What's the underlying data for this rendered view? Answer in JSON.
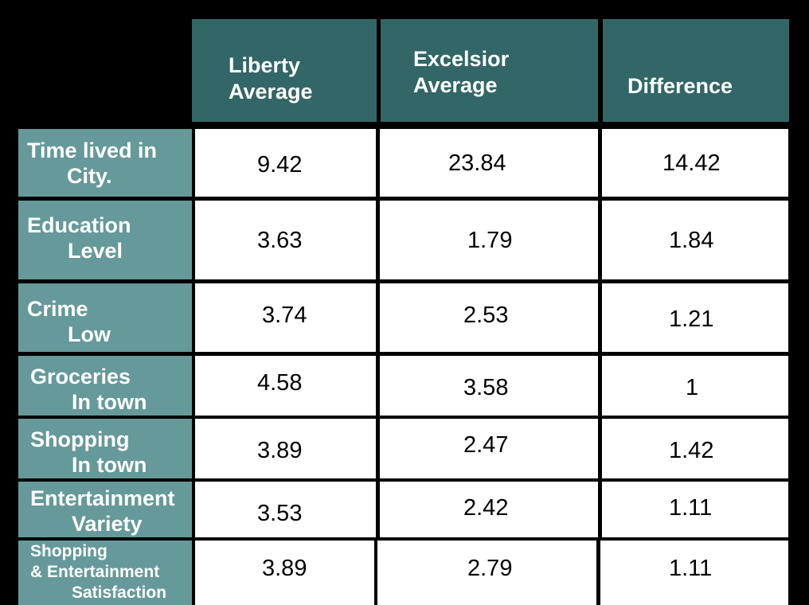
{
  "chart_data": {
    "type": "table",
    "title": "",
    "columns": [
      {
        "line1": "Liberty",
        "line2": "Average"
      },
      {
        "line1": "Excelsior",
        "line2": "Average"
      },
      {
        "line1": "Difference",
        "line2": ""
      }
    ],
    "rows": [
      {
        "label": [
          "Time lived in",
          "City."
        ],
        "values": [
          "9.42",
          "23.84",
          "14.42"
        ]
      },
      {
        "label": [
          "Education",
          "Level"
        ],
        "values": [
          "3.63",
          "1.79",
          "1.84"
        ]
      },
      {
        "label": [
          "Crime",
          "Low"
        ],
        "values": [
          "3.74",
          "2.53",
          "1.21"
        ]
      },
      {
        "label": [
          "Groceries",
          "In town"
        ],
        "values": [
          "4.58",
          "3.58",
          "1"
        ]
      },
      {
        "label": [
          "Shopping",
          "In town"
        ],
        "values": [
          "3.89",
          "2.47",
          "1.42"
        ]
      },
      {
        "label": [
          "Entertainment",
          "Variety"
        ],
        "values": [
          "3.53",
          "2.42",
          "1.11"
        ]
      },
      {
        "label": [
          "Shopping",
          "& Entertainment",
          "Satisfaction"
        ],
        "values": [
          "3.89",
          "2.79",
          "1.11"
        ]
      }
    ],
    "colors": {
      "header_bg": "#336666",
      "row_label_bg": "#669999",
      "cell_bg": "#ffffff",
      "background": "#000000"
    }
  }
}
